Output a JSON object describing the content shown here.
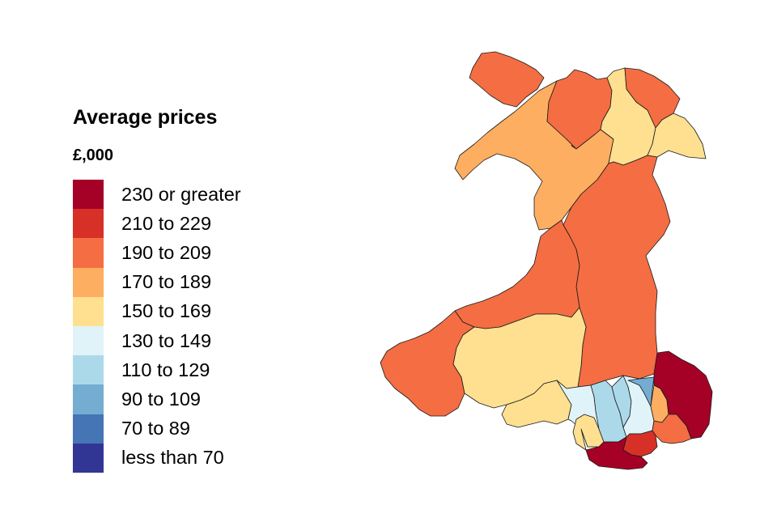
{
  "legend": {
    "title": "Average prices",
    "subtitle": "£,000",
    "items": [
      {
        "label": "230 or greater",
        "color": "#a50026"
      },
      {
        "label": "210 to 229",
        "color": "#d73027"
      },
      {
        "label": "190 to 209",
        "color": "#f46d43"
      },
      {
        "label": "170 to 189",
        "color": "#fdae61"
      },
      {
        "label": "150 to 169",
        "color": "#fee090"
      },
      {
        "label": "130 to 149",
        "color": "#e0f3f8"
      },
      {
        "label": "110 to 129",
        "color": "#abd9e9"
      },
      {
        "label": "90 to 109",
        "color": "#74add1"
      },
      {
        "label": "70 to 89",
        "color": "#4575b4"
      },
      {
        "label": "less than 70",
        "color": "#313695"
      }
    ]
  },
  "map": {
    "regions": [
      {
        "id": "anglesey",
        "band": "190 to 209"
      },
      {
        "id": "gwynedd",
        "band": "170 to 189"
      },
      {
        "id": "conwy",
        "band": "190 to 209"
      },
      {
        "id": "denbighshire",
        "band": "150 to 169"
      },
      {
        "id": "flintshire",
        "band": "190 to 209"
      },
      {
        "id": "wrexham",
        "band": "150 to 169"
      },
      {
        "id": "powys",
        "band": "190 to 209"
      },
      {
        "id": "ceredigion",
        "band": "190 to 209"
      },
      {
        "id": "pembrokeshire",
        "band": "190 to 209"
      },
      {
        "id": "carmarthenshire",
        "band": "150 to 169"
      },
      {
        "id": "swansea",
        "band": "150 to 169"
      },
      {
        "id": "neath-port-talbot",
        "band": "130 to 149"
      },
      {
        "id": "bridgend",
        "band": "150 to 169"
      },
      {
        "id": "rhondda-cynon-taf",
        "band": "110 to 129"
      },
      {
        "id": "merthyr-tydfil",
        "band": "110 to 129"
      },
      {
        "id": "caerphilly",
        "band": "130 to 149"
      },
      {
        "id": "blaenau-gwent",
        "band": "90 to 109"
      },
      {
        "id": "torfaen",
        "band": "170 to 189"
      },
      {
        "id": "monmouthshire",
        "band": "230 or greater"
      },
      {
        "id": "newport",
        "band": "190 to 209"
      },
      {
        "id": "cardiff",
        "band": "210 to 229"
      },
      {
        "id": "vale-of-glamorgan",
        "band": "230 or greater"
      }
    ]
  }
}
